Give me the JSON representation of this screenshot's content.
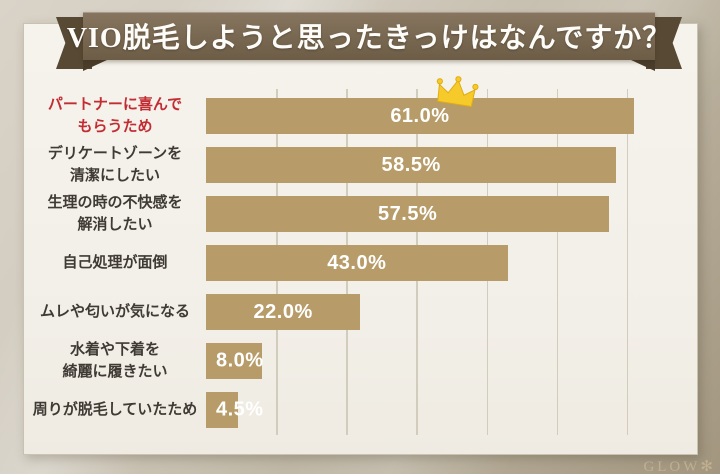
{
  "title": "VIO脱毛しようと思ったきっけはなんですか？",
  "logo": "GLOW✻",
  "colors": {
    "bar": "#b79c69",
    "ribbon": "#7b6a53",
    "ribbon_tail": "#574933",
    "accent_red": "#c22d33",
    "label_dark": "#3f3b34",
    "crown_gold": "#f7ca2b",
    "card_bg": "#f2efe8"
  },
  "chart_data": {
    "type": "bar",
    "orientation": "horizontal",
    "title": "VIO脱毛しようと思ったきっけはなんですか？",
    "xlabel": "",
    "ylabel": "",
    "unit": "%",
    "xlim": [
      0,
      70
    ],
    "gridline_step": 10,
    "grid": true,
    "legend": false,
    "categories": [
      "パートナーに喜んでもらうため",
      "デリケートゾーンを清潔にしたい",
      "生理の時の不快感を解消したい",
      "自己処理が面倒",
      "ムレや匂いが気になる",
      "水着や下着を綺麗に履きたい",
      "周りが脱毛していたため"
    ],
    "values": [
      61.0,
      58.5,
      57.5,
      43.0,
      22.0,
      8.0,
      4.5
    ],
    "rows": [
      {
        "label": "パートナーに喜んで\nもらうため",
        "value": 61.0,
        "display": "61.0%",
        "rank1": true
      },
      {
        "label": "デリケートゾーンを\n清潔にしたい",
        "value": 58.5,
        "display": "58.5%"
      },
      {
        "label": "生理の時の不快感を\n解消したい",
        "value": 57.5,
        "display": "57.5%"
      },
      {
        "label": "自己処理が面倒",
        "value": 43.0,
        "display": "43.0%"
      },
      {
        "label": "ムレや匂いが気になる",
        "value": 22.0,
        "display": "22.0%"
      },
      {
        "label": "水着や下着を\n綺麗に履きたい",
        "value": 8.0,
        "display": "8.0%"
      },
      {
        "label": "周りが脱毛していたため",
        "value": 4.5,
        "display": "4.5%"
      }
    ]
  }
}
